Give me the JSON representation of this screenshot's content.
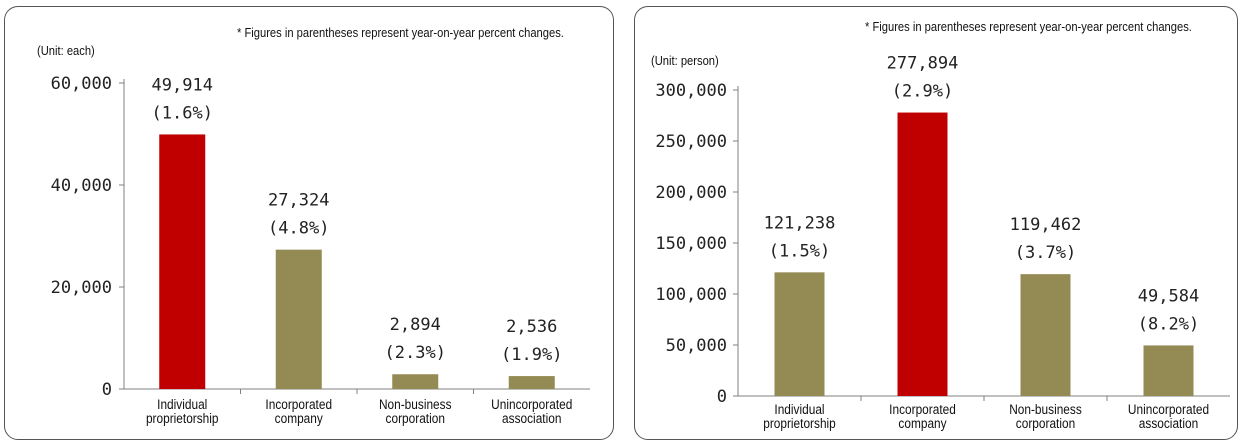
{
  "colors": {
    "highlight": "#c00000",
    "normal": "#948a54",
    "axis": "#808080"
  },
  "chart_data": [
    {
      "type": "bar",
      "note": "* Figures in parentheses represent year-on-year percent changes.",
      "unit_label": "(Unit: each)",
      "categories": [
        [
          "Individual",
          "proprietorship"
        ],
        [
          "Incorporated",
          "company"
        ],
        [
          "Non-business",
          "corporation"
        ],
        [
          "Unincorporated",
          "association"
        ]
      ],
      "values": [
        49914,
        27324,
        2894,
        2536
      ],
      "value_labels": [
        "49,914",
        "27,324",
        "2,894",
        "2,536"
      ],
      "change_labels": [
        "(1.6%)",
        "(4.8%)",
        "(2.3%)",
        "(1.9%)"
      ],
      "highlight_index": 0,
      "ylim": [
        0,
        60000
      ],
      "yticks": [
        0,
        20000,
        40000,
        60000
      ],
      "ytick_labels": [
        "0",
        "20,000",
        "40,000",
        "60,000"
      ],
      "grid": false
    },
    {
      "type": "bar",
      "note": "* Figures in parentheses represent year-on-year percent changes.",
      "unit_label": "(Unit: person)",
      "categories": [
        [
          "Individual",
          "proprietorship"
        ],
        [
          "Incorporated",
          "company"
        ],
        [
          "Non-business",
          "corporation"
        ],
        [
          "Unincorporated",
          "association"
        ]
      ],
      "values": [
        121238,
        277894,
        119462,
        49584
      ],
      "value_labels": [
        "121,238",
        "277,894",
        "119,462",
        "49,584"
      ],
      "change_labels": [
        "(1.5%)",
        "(2.9%)",
        "(3.7%)",
        "(8.2%)"
      ],
      "highlight_index": 1,
      "ylim": [
        0,
        300000
      ],
      "yticks": [
        0,
        50000,
        100000,
        150000,
        200000,
        250000,
        300000
      ],
      "ytick_labels": [
        "0",
        "50,000",
        "100,000",
        "150,000",
        "200,000",
        "250,000",
        "300,000"
      ],
      "grid": false
    }
  ]
}
